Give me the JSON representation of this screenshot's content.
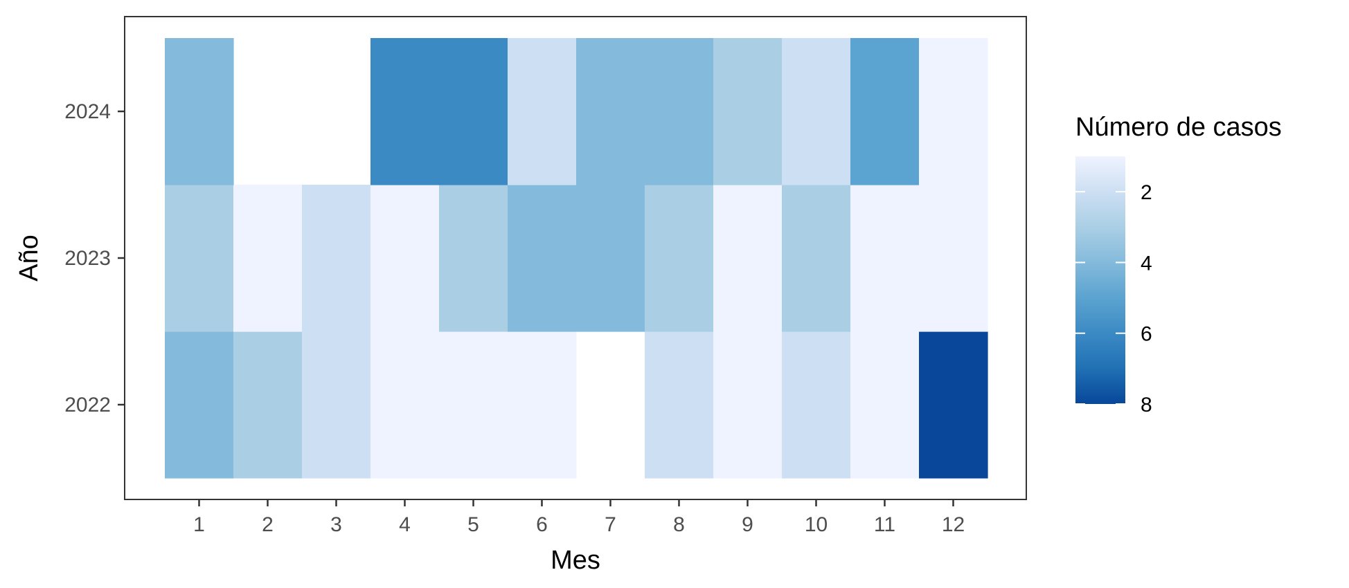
{
  "chart_data": {
    "type": "heatmap",
    "title": "",
    "xlabel": "Mes",
    "ylabel": "Año",
    "x_categories": [
      "1",
      "2",
      "3",
      "4",
      "5",
      "6",
      "7",
      "8",
      "9",
      "10",
      "11",
      "12"
    ],
    "y_categories": [
      "2022",
      "2023",
      "2024"
    ],
    "cells": [
      {
        "x": "1",
        "y": "2022",
        "value": 4
      },
      {
        "x": "2",
        "y": "2022",
        "value": 3
      },
      {
        "x": "3",
        "y": "2022",
        "value": 2
      },
      {
        "x": "4",
        "y": "2022",
        "value": 1
      },
      {
        "x": "5",
        "y": "2022",
        "value": 1
      },
      {
        "x": "6",
        "y": "2022",
        "value": 1
      },
      {
        "x": "8",
        "y": "2022",
        "value": 2
      },
      {
        "x": "9",
        "y": "2022",
        "value": 1
      },
      {
        "x": "10",
        "y": "2022",
        "value": 2
      },
      {
        "x": "11",
        "y": "2022",
        "value": 1
      },
      {
        "x": "12",
        "y": "2022",
        "value": 8
      },
      {
        "x": "1",
        "y": "2023",
        "value": 3
      },
      {
        "x": "2",
        "y": "2023",
        "value": 1
      },
      {
        "x": "3",
        "y": "2023",
        "value": 2
      },
      {
        "x": "4",
        "y": "2023",
        "value": 1
      },
      {
        "x": "5",
        "y": "2023",
        "value": 3
      },
      {
        "x": "6",
        "y": "2023",
        "value": 4
      },
      {
        "x": "7",
        "y": "2023",
        "value": 4
      },
      {
        "x": "8",
        "y": "2023",
        "value": 3
      },
      {
        "x": "9",
        "y": "2023",
        "value": 1
      },
      {
        "x": "10",
        "y": "2023",
        "value": 3
      },
      {
        "x": "11",
        "y": "2023",
        "value": 1
      },
      {
        "x": "12",
        "y": "2023",
        "value": 1
      },
      {
        "x": "1",
        "y": "2024",
        "value": 4
      },
      {
        "x": "4",
        "y": "2024",
        "value": 6
      },
      {
        "x": "5",
        "y": "2024",
        "value": 6
      },
      {
        "x": "6",
        "y": "2024",
        "value": 2
      },
      {
        "x": "7",
        "y": "2024",
        "value": 4
      },
      {
        "x": "8",
        "y": "2024",
        "value": 4
      },
      {
        "x": "9",
        "y": "2024",
        "value": 3
      },
      {
        "x": "10",
        "y": "2024",
        "value": 2
      },
      {
        "x": "11",
        "y": "2024",
        "value": 5
      },
      {
        "x": "12",
        "y": "2024",
        "value": 1
      }
    ],
    "legend": {
      "title": "Número de casos",
      "position": "right",
      "range": [
        1,
        8
      ],
      "breaks": [
        "2",
        "4",
        "6",
        "8"
      ],
      "palette": [
        "#eff3ff",
        "#cddff3",
        "#aacfe5",
        "#84badb",
        "#5ba3d0",
        "#3c8ac4",
        "#2070b4",
        "#08479a"
      ]
    },
    "grid": false
  }
}
